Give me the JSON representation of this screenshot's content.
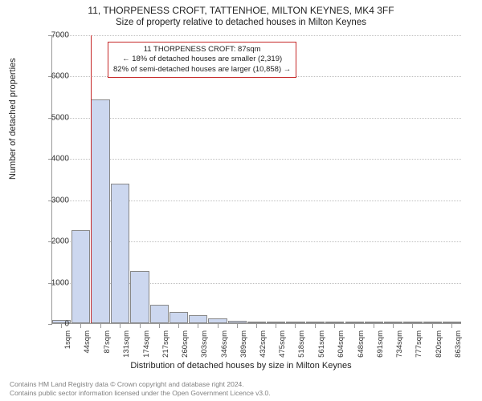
{
  "title": "11, THORPENESS CROFT, TATTENHOE, MILTON KEYNES, MK4 3FF",
  "subtitle": "Size of property relative to detached houses in Milton Keynes",
  "chart": {
    "type": "histogram",
    "ylabel": "Number of detached properties",
    "xlabel": "Distribution of detached houses by size in Milton Keynes",
    "ylim": [
      0,
      7000
    ],
    "ytick_step": 1000,
    "bar_fill": "#ccd7ef",
    "bar_border": "#888888",
    "grid_color": "#bfbfbf",
    "background": "#ffffff",
    "marker_line_color": "#c62828",
    "marker_x_value": 87,
    "x_tick_values": [
      1,
      44,
      87,
      131,
      174,
      217,
      260,
      303,
      346,
      389,
      432,
      475,
      518,
      561,
      604,
      648,
      691,
      734,
      777,
      820,
      863
    ],
    "x_tick_labels": [
      "1sqm",
      "44sqm",
      "87sqm",
      "131sqm",
      "174sqm",
      "217sqm",
      "260sqm",
      "303sqm",
      "346sqm",
      "389sqm",
      "432sqm",
      "475sqm",
      "518sqm",
      "561sqm",
      "604sqm",
      "648sqm",
      "691sqm",
      "734sqm",
      "777sqm",
      "820sqm",
      "863sqm"
    ],
    "bars": [
      {
        "x": 1,
        "value": 80
      },
      {
        "x": 44,
        "value": 2250
      },
      {
        "x": 87,
        "value": 5420
      },
      {
        "x": 131,
        "value": 3380
      },
      {
        "x": 174,
        "value": 1270
      },
      {
        "x": 217,
        "value": 450
      },
      {
        "x": 260,
        "value": 270
      },
      {
        "x": 303,
        "value": 190
      },
      {
        "x": 346,
        "value": 110
      },
      {
        "x": 389,
        "value": 60
      },
      {
        "x": 432,
        "value": 30
      },
      {
        "x": 475,
        "value": 10
      },
      {
        "x": 518,
        "value": 8
      },
      {
        "x": 561,
        "value": 6
      },
      {
        "x": 604,
        "value": 5
      },
      {
        "x": 648,
        "value": 4
      },
      {
        "x": 691,
        "value": 3
      },
      {
        "x": 734,
        "value": 2
      },
      {
        "x": 777,
        "value": 2
      },
      {
        "x": 820,
        "value": 1
      },
      {
        "x": 863,
        "value": 1
      }
    ],
    "annotation": {
      "line1": "11 THORPENESS CROFT: 87sqm",
      "line2": "← 18% of detached houses are smaller (2,319)",
      "line3": "82% of semi-detached houses are larger (10,858) →",
      "border_color": "#c62828"
    }
  },
  "footer": {
    "line1": "Contains HM Land Registry data © Crown copyright and database right 2024.",
    "line2": "Contains public sector information licensed under the Open Government Licence v3.0."
  }
}
